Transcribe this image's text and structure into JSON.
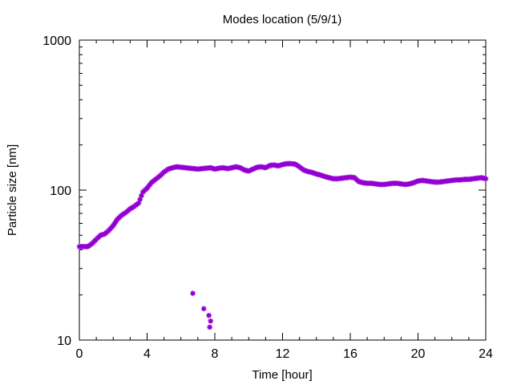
{
  "chart_data": {
    "type": "scatter",
    "title": "Modes location (5/9/1)",
    "xlabel": "Time [hour]",
    "ylabel": "Particle size [nm]",
    "xlim": [
      0,
      24
    ],
    "ylim": [
      10,
      1000
    ],
    "yscale": "log",
    "grid": false,
    "x_ticks": [
      0,
      4,
      8,
      12,
      16,
      20,
      24
    ],
    "x_tick_labels": [
      "0",
      "4",
      "8",
      "12",
      "16",
      "20",
      "24"
    ],
    "y_ticks": [
      10,
      100,
      1000
    ],
    "y_tick_labels": [
      "10",
      "100",
      "1000"
    ],
    "marker_color": "#9400d3",
    "series": [
      {
        "x": [
          0.0,
          0.25,
          0.5,
          0.75,
          1.0,
          1.25,
          1.5,
          1.75,
          2.0,
          2.25,
          2.5,
          2.75,
          3.0,
          3.25,
          3.5,
          3.75,
          4.0,
          4.25,
          4.5,
          4.75,
          5.0,
          5.25,
          5.5,
          5.75,
          6.0,
          6.25,
          6.5,
          6.75,
          7.0,
          7.25,
          7.5,
          7.75,
          8.0,
          8.25,
          8.5,
          8.75,
          9.0,
          9.25,
          9.5,
          9.75,
          10.0,
          10.25,
          10.5,
          10.75,
          11.0,
          11.25,
          11.5,
          11.75,
          12.0,
          12.25,
          12.5,
          12.75,
          13.0,
          13.25,
          13.5,
          13.75,
          14.0,
          14.25,
          14.5,
          14.75,
          15.0,
          15.25,
          15.5,
          15.75,
          16.0,
          16.25,
          16.5,
          16.75,
          17.0,
          17.25,
          17.5,
          17.75,
          18.0,
          18.25,
          18.5,
          18.75,
          19.0,
          19.25,
          19.5,
          19.75,
          20.0,
          20.25,
          20.5,
          20.75,
          21.0,
          21.25,
          21.5,
          21.75,
          22.0,
          22.25,
          22.5,
          22.75,
          23.0,
          23.25,
          23.5,
          23.75,
          24.0
        ],
        "y": [
          42,
          42,
          42,
          44,
          47,
          50,
          51,
          54,
          58,
          64,
          68,
          71,
          75,
          78,
          82,
          97,
          103,
          112,
          118,
          124,
          132,
          138,
          141,
          143,
          142,
          141,
          140,
          139,
          138,
          139,
          140,
          141,
          138,
          140,
          141,
          139,
          141,
          143,
          141,
          136,
          134,
          138,
          142,
          143,
          141,
          146,
          147,
          145,
          148,
          150,
          150,
          149,
          143,
          136,
          133,
          131,
          128,
          126,
          123,
          121,
          119,
          119,
          120,
          121,
          122,
          121,
          114,
          112,
          111,
          111,
          110,
          109,
          109,
          110,
          111,
          111,
          110,
          109,
          110,
          112,
          115,
          116,
          115,
          114,
          113,
          113,
          114,
          115,
          116,
          117,
          117,
          118,
          118,
          119,
          120,
          121,
          119
        ]
      },
      {
        "x": [
          6.7,
          7.35,
          7.65,
          7.7,
          7.75
        ],
        "y": [
          20.5,
          16.2,
          14.6,
          12.2,
          13.4
        ]
      }
    ]
  }
}
